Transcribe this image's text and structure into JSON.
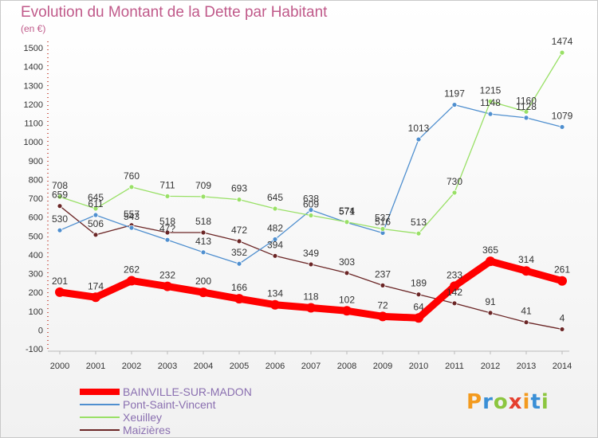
{
  "title": "Evolution du Montant de la Dette par Habitant",
  "unit_label": "(en €)",
  "logo_text": "Proxiti",
  "chart_data": {
    "type": "line",
    "x": [
      "2000",
      "2001",
      "2002",
      "2003",
      "2004",
      "2005",
      "2006",
      "2007",
      "2008",
      "2009",
      "2010",
      "2011",
      "2012",
      "2013",
      "2014"
    ],
    "ylim": [
      -100,
      1500
    ],
    "yticks": [
      -100,
      0,
      100,
      200,
      300,
      400,
      500,
      600,
      700,
      800,
      900,
      1000,
      1100,
      1200,
      1300,
      1400,
      1500
    ],
    "grid": false,
    "legend_position": "bottom-left",
    "series": [
      {
        "name": "BAINVILLE-SUR-MADON",
        "color": "#ff0000",
        "values": [
          201,
          174,
          262,
          232,
          200,
          166,
          134,
          118,
          102,
          72,
          64,
          233,
          365,
          314,
          261
        ]
      },
      {
        "name": "Pont-Saint-Vincent",
        "color": "#4f8fcf",
        "values": [
          530,
          611,
          543,
          479,
          413,
          352,
          482,
          638,
          571,
          516,
          1013,
          1197,
          1148,
          1128,
          1079
        ]
      },
      {
        "name": "Xeuilley",
        "color": "#99e066",
        "values": [
          708,
          645,
          760,
          711,
          709,
          693,
          645,
          609,
          574,
          537,
          513,
          730,
          1215,
          1160,
          1474
        ]
      },
      {
        "name": "Maizières",
        "color": "#6b2626",
        "values": [
          659,
          506,
          557,
          518,
          518,
          472,
          394,
          349,
          303,
          237,
          189,
          142,
          91,
          41,
          4
        ]
      }
    ],
    "labels": [
      {
        "series": 0,
        "values": [
          "201",
          "174",
          "262",
          "232",
          "200",
          "166",
          "134",
          "118",
          "102",
          "72",
          "64",
          "233",
          "365",
          "314",
          "261"
        ]
      },
      {
        "series": 1,
        "values": [
          "530",
          "611",
          "543",
          "47?",
          "413",
          "352",
          "482",
          "638",
          "571",
          "516",
          "1013",
          "1197",
          "1148",
          "1128",
          "1079"
        ]
      },
      {
        "series": 2,
        "values": [
          "708",
          "645",
          "760",
          "711",
          "709",
          "693",
          "645",
          "609",
          "574",
          "537",
          "513",
          "730",
          "1215",
          "1160",
          "1474"
        ]
      },
      {
        "series": 3,
        "values": [
          "659",
          "506",
          "557",
          "518",
          "518",
          "472",
          "394",
          "349",
          "303",
          "237",
          "189",
          "142",
          "91",
          "41",
          "4"
        ]
      }
    ]
  }
}
